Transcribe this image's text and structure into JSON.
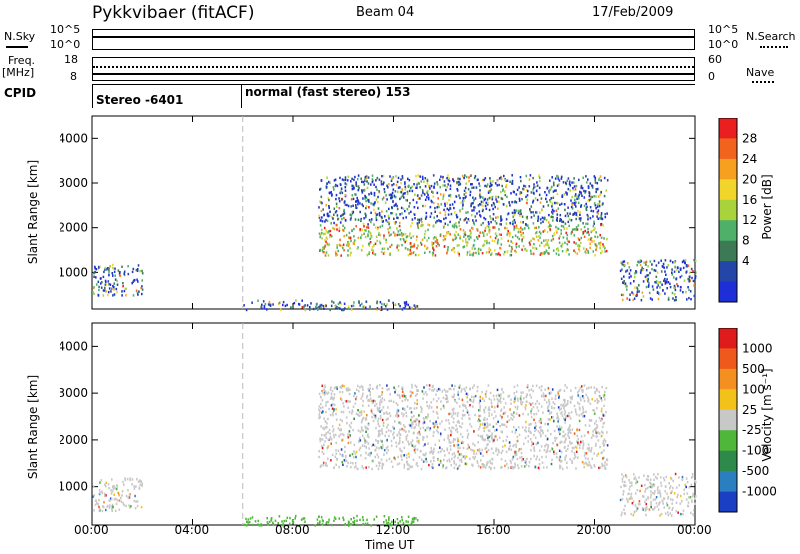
{
  "header": {
    "station": "Pykkvibaer (fitACF)",
    "beam": "Beam 04",
    "date": "17/Feb/2009"
  },
  "noise_panel": {
    "left_label": "N.Sky",
    "left_ticks": [
      "10^5",
      "10^0"
    ],
    "right_label": "N.Search",
    "right_ticks": [
      "10^5",
      "10^0"
    ]
  },
  "freq_panel": {
    "left_label_1": "Freq.",
    "left_label_2": "[MHz]",
    "left_ticks": [
      "18",
      "8"
    ],
    "right_label": "Nave",
    "right_ticks": [
      "60",
      "0"
    ]
  },
  "cpid_panel": {
    "label": "CPID",
    "segments": [
      {
        "text": "Stereo -6401",
        "start": "00:00"
      },
      {
        "text": "normal (fast stereo) 153",
        "start": "06:00"
      }
    ]
  },
  "power_panel": {
    "ylabel": "Slant Range [km]",
    "yticks": [
      "4000",
      "3000",
      "2000",
      "1000"
    ],
    "colorbar_label": "Power [dB]",
    "colorbar_ticks": [
      "28",
      "24",
      "20",
      "16",
      "12",
      "8",
      "4"
    ],
    "colors": [
      "#1f2fd8",
      "#2346a8",
      "#3c7a55",
      "#4fb06a",
      "#a8d33a",
      "#f1d52a",
      "#f7a020",
      "#f2641e",
      "#ea1f1f"
    ]
  },
  "velocity_panel": {
    "ylabel": "Slant Range [km]",
    "yticks": [
      "4000",
      "3000",
      "2000",
      "1000"
    ],
    "colorbar_label": "Velocity [m s⁻¹]",
    "colorbar_ticks": [
      "1000",
      "500",
      "100",
      "25",
      "-25",
      "-100",
      "-500",
      "-1000"
    ],
    "colors": [
      "#1b3fc4",
      "#2b7fc0",
      "#2e8a4a",
      "#4fb83a",
      "#c8c8c8",
      "#f2c21a",
      "#f39020",
      "#ef5a1c",
      "#e01b1b"
    ]
  },
  "x_axis": {
    "ticks": [
      "00:00",
      "04:00",
      "08:00",
      "12:00",
      "16:00",
      "20:00",
      "00:00"
    ],
    "label": "Time UT"
  },
  "chart_data": {
    "type": "heatmap",
    "x_range_hours": [
      0,
      24
    ],
    "y_range_km": [
      180,
      4500
    ],
    "features": [
      {
        "name": "main echo band",
        "time_start": "09:00",
        "time_end": "20:30",
        "range_km": [
          1400,
          3200
        ]
      },
      {
        "name": "near-range ground scatter",
        "time_start": "06:00",
        "time_end": "13:00",
        "range_km": [
          180,
          400
        ]
      },
      {
        "name": "late near-range band",
        "time_start": "21:00",
        "time_end": "24:00",
        "range_km": [
          400,
          1300
        ]
      },
      {
        "name": "early patch",
        "time_start": "00:00",
        "time_end": "02:00",
        "range_km": [
          500,
          1200
        ]
      }
    ]
  }
}
